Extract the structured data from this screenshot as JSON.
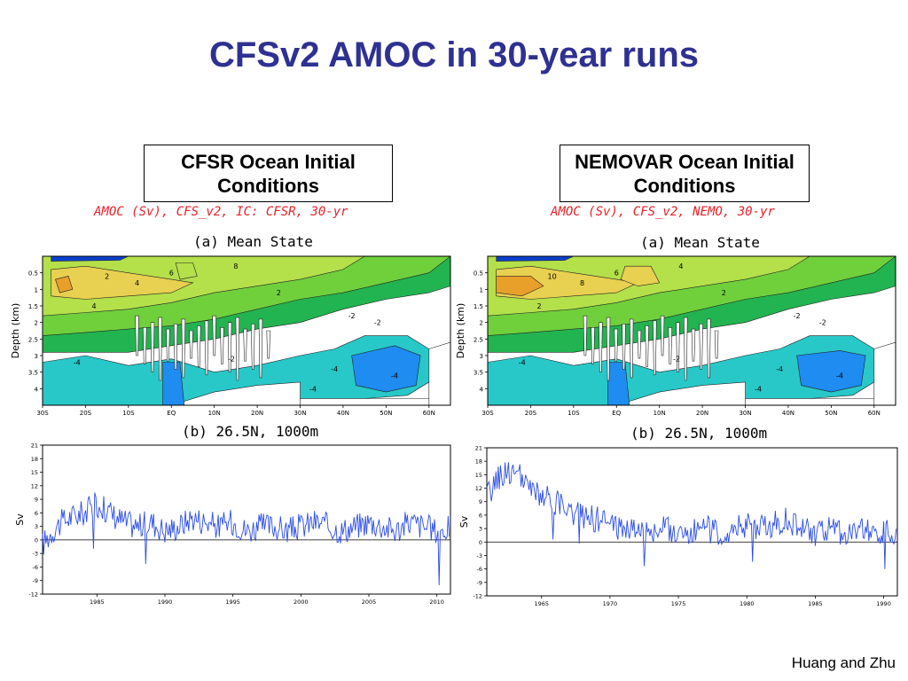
{
  "title": "CFSv2 AMOC in 30-year runs",
  "footer": "Huang and Zhu",
  "panels": [
    {
      "box_label": "CFSR Ocean Initial Conditions",
      "caption": "AMOC (Sv), CFS_v2, IC: CFSR, 30-yr",
      "subtitle_a": "(a) Mean State",
      "subtitle_b": "(b) 26.5N, 1000m",
      "contour_labels": [
        "2",
        "4",
        "6",
        "8",
        "4",
        "2",
        "-2",
        "-4",
        "-2",
        "-4",
        "-4",
        "-2",
        "-4"
      ]
    },
    {
      "box_label": "NEMOVAR Ocean Initial Conditions",
      "caption": "AMOC (Sv), CFS_v2, NEMO, 30-yr",
      "subtitle_a": "(a) Mean State",
      "subtitle_b": "(b) 26.5N, 1000m",
      "contour_labels": [
        "10",
        "8",
        "6",
        "4",
        "2",
        "2",
        "-2",
        "-4",
        "-2",
        "-4",
        "-4",
        "-2",
        "-4"
      ]
    }
  ],
  "chart_data": [
    {
      "type": "heatmap",
      "title": "(a) Mean State",
      "ylabel": "Depth (km)",
      "xlabel": "",
      "x_ticks": [
        "30S",
        "20S",
        "10S",
        "EQ",
        "10N",
        "20N",
        "30N",
        "40N",
        "50N",
        "60N"
      ],
      "y_ticks": [
        "0.5",
        "1",
        "1.5",
        "2",
        "2.5",
        "3",
        "3.5",
        "4"
      ],
      "xlim": [
        -30,
        65
      ],
      "ylim": [
        0,
        4.5
      ],
      "y_reversed": true,
      "colors": {
        "10": "#e8a02a",
        "8": "#e8d050",
        "6": "#b4e04a",
        "4": "#6fd03c",
        "2": "#22b450",
        "0": "#ffffff",
        "-2": "#28c8c8",
        "-4": "#1e8cf0",
        "-6": "#0a40d0"
      }
    },
    {
      "type": "line",
      "title": "(b) 26.5N, 1000m",
      "ylabel": "Sv",
      "xlim": [
        1981,
        2011
      ],
      "ylim": [
        -12,
        21
      ],
      "x_ticks": [
        1985,
        1990,
        1995,
        2000,
        2005,
        2010
      ],
      "y_ticks": [
        -12,
        -9,
        -6,
        -3,
        0,
        3,
        6,
        9,
        12,
        15,
        18,
        21
      ],
      "series": [
        {
          "x": [
            1981,
            1982,
            1983,
            1984,
            1985,
            1986,
            1987,
            1988,
            1989,
            1990,
            1991,
            1992,
            1993,
            1994,
            1995,
            1996,
            1997,
            1998,
            1999,
            2000,
            2001,
            2002,
            2003,
            2004,
            2005,
            2006,
            2007,
            2008,
            2009,
            2010,
            2011
          ],
          "values": [
            -1,
            3,
            5,
            6,
            8,
            6,
            4,
            3,
            4,
            2,
            3,
            5,
            4,
            3,
            4,
            2,
            3,
            3,
            2,
            3,
            4,
            3,
            2,
            3,
            4,
            3,
            2,
            4,
            3,
            2,
            3
          ]
        }
      ]
    },
    {
      "type": "heatmap",
      "title": "(a) Mean State",
      "ylabel": "Depth (km)",
      "xlabel": "",
      "x_ticks": [
        "30S",
        "20S",
        "10S",
        "EQ",
        "10N",
        "20N",
        "30N",
        "40N",
        "50N",
        "60N"
      ],
      "y_ticks": [
        "0.5",
        "1",
        "1.5",
        "2",
        "2.5",
        "3",
        "3.5",
        "4"
      ],
      "xlim": [
        -30,
        65
      ],
      "ylim": [
        0,
        4.5
      ],
      "y_reversed": true
    },
    {
      "type": "line",
      "title": "(b) 26.5N, 1000m",
      "ylabel": "Sv",
      "xlim": [
        1961,
        1991
      ],
      "ylim": [
        -12,
        21
      ],
      "x_ticks": [
        1965,
        1970,
        1975,
        1980,
        1985,
        1990
      ],
      "y_ticks": [
        -12,
        -9,
        -6,
        -3,
        0,
        3,
        6,
        9,
        12,
        15,
        18,
        21
      ],
      "series": [
        {
          "x": [
            1961,
            1962,
            1963,
            1964,
            1965,
            1966,
            1967,
            1968,
            1969,
            1970,
            1971,
            1972,
            1973,
            1974,
            1975,
            1976,
            1977,
            1978,
            1979,
            1980,
            1981,
            1982,
            1983,
            1984,
            1985,
            1986,
            1987,
            1988,
            1989,
            1990,
            1991
          ],
          "values": [
            10,
            15,
            16,
            12,
            10,
            9,
            7,
            6,
            5,
            4,
            3,
            3,
            2,
            3,
            2,
            2,
            3,
            2,
            3,
            4,
            3,
            4,
            5,
            3,
            2,
            3,
            2,
            2,
            3,
            2,
            2
          ]
        }
      ]
    }
  ]
}
